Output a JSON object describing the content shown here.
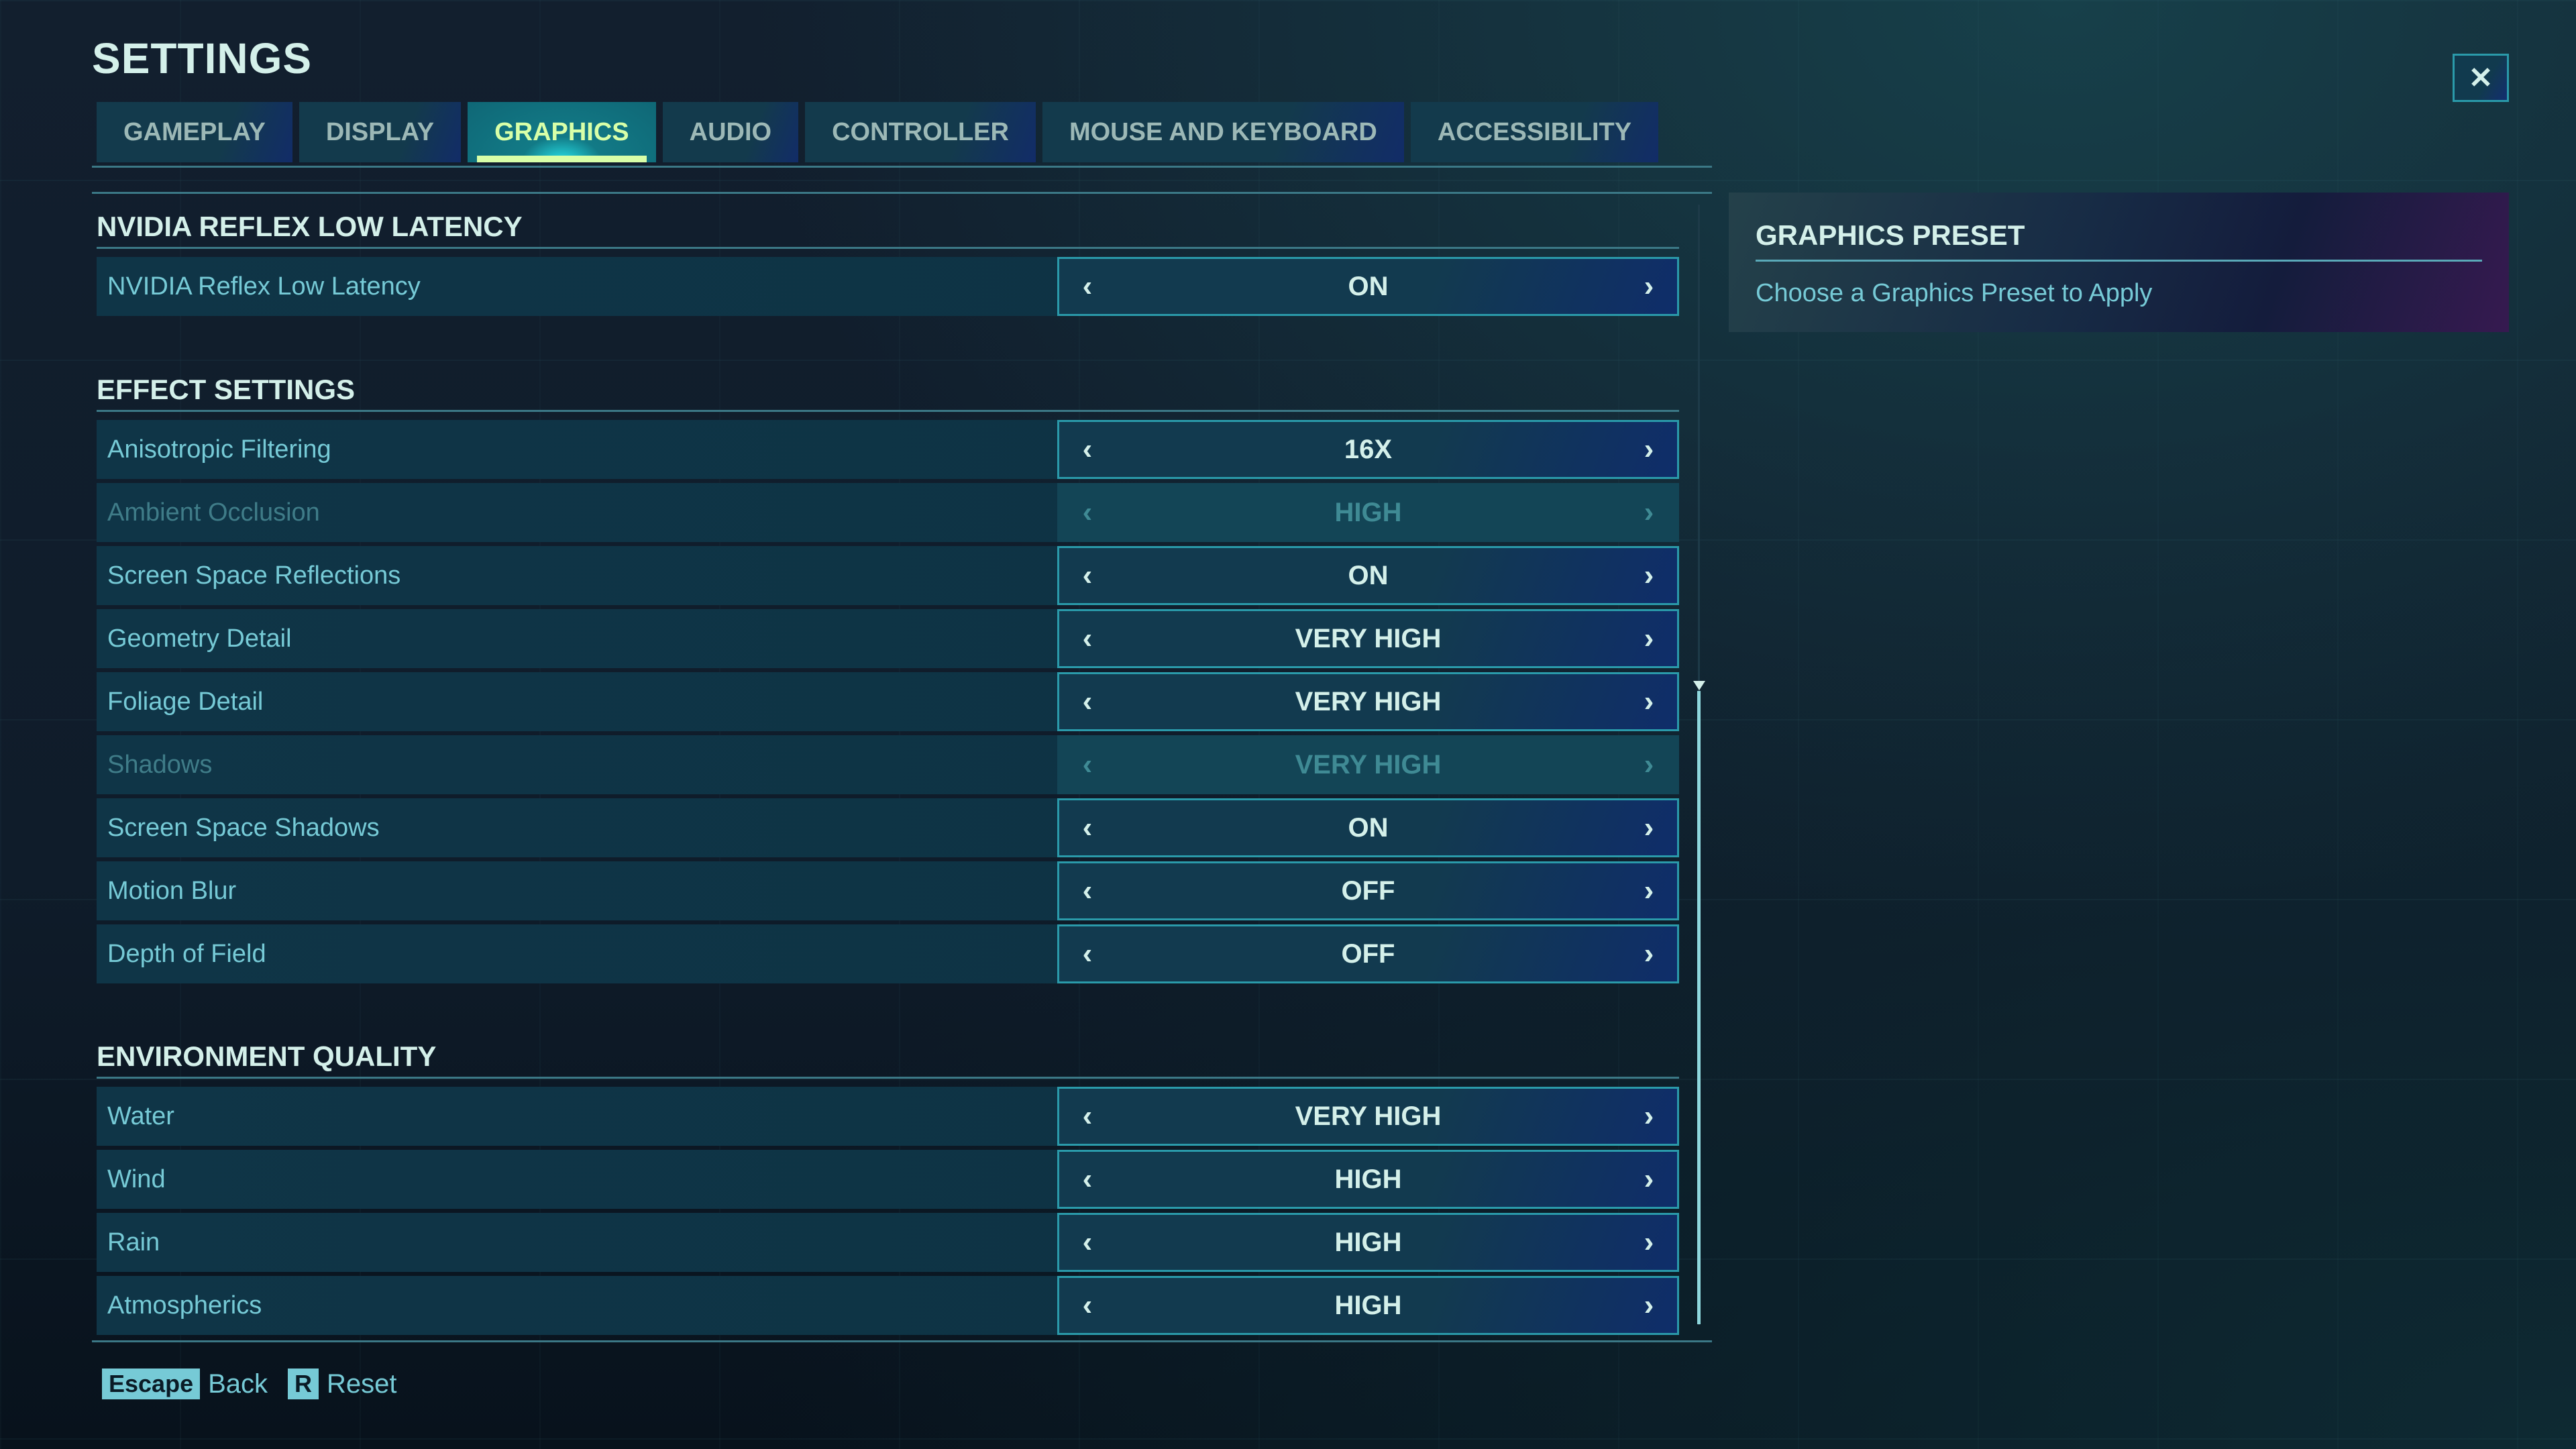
{
  "title": "SETTINGS",
  "tabs": [
    {
      "label": "GAMEPLAY",
      "active": false
    },
    {
      "label": "DISPLAY",
      "active": false
    },
    {
      "label": "GRAPHICS",
      "active": true
    },
    {
      "label": "AUDIO",
      "active": false
    },
    {
      "label": "CONTROLLER",
      "active": false
    },
    {
      "label": "MOUSE AND KEYBOARD",
      "active": false
    },
    {
      "label": "ACCESSIBILITY",
      "active": false
    }
  ],
  "sections": [
    {
      "header": "NVIDIA REFLEX LOW LATENCY",
      "rows": [
        {
          "label": "NVIDIA Reflex Low Latency",
          "value": "ON",
          "disabled": false
        }
      ]
    },
    {
      "header": "EFFECT SETTINGS",
      "rows": [
        {
          "label": "Anisotropic Filtering",
          "value": "16X",
          "disabled": false
        },
        {
          "label": "Ambient Occlusion",
          "value": "HIGH",
          "disabled": true
        },
        {
          "label": "Screen Space Reflections",
          "value": "ON",
          "disabled": false
        },
        {
          "label": "Geometry Detail",
          "value": "VERY HIGH",
          "disabled": false
        },
        {
          "label": "Foliage Detail",
          "value": "VERY HIGH",
          "disabled": false
        },
        {
          "label": "Shadows",
          "value": "VERY HIGH",
          "disabled": true
        },
        {
          "label": "Screen Space Shadows",
          "value": "ON",
          "disabled": false
        },
        {
          "label": "Motion Blur",
          "value": "OFF",
          "disabled": false
        },
        {
          "label": "Depth of Field",
          "value": "OFF",
          "disabled": false
        }
      ]
    },
    {
      "header": "ENVIRONMENT QUALITY",
      "rows": [
        {
          "label": "Water",
          "value": "VERY HIGH",
          "disabled": false
        },
        {
          "label": "Wind",
          "value": "HIGH",
          "disabled": false
        },
        {
          "label": "Rain",
          "value": "HIGH",
          "disabled": false
        },
        {
          "label": "Atmospherics",
          "value": "HIGH",
          "disabled": false
        }
      ]
    }
  ],
  "preset": {
    "header": "GRAPHICS PRESET",
    "description": "Choose a Graphics Preset to Apply"
  },
  "icons": {
    "prev": "‹",
    "next": "›",
    "close": "✕"
  },
  "footer": {
    "back_key": "Escape",
    "back_label": "Back",
    "reset_key": "R",
    "reset_label": "Reset"
  },
  "colors": {
    "accent": "#76cad6",
    "active_tab_text": "#d8ffa8",
    "border": "#2a9aaa"
  }
}
